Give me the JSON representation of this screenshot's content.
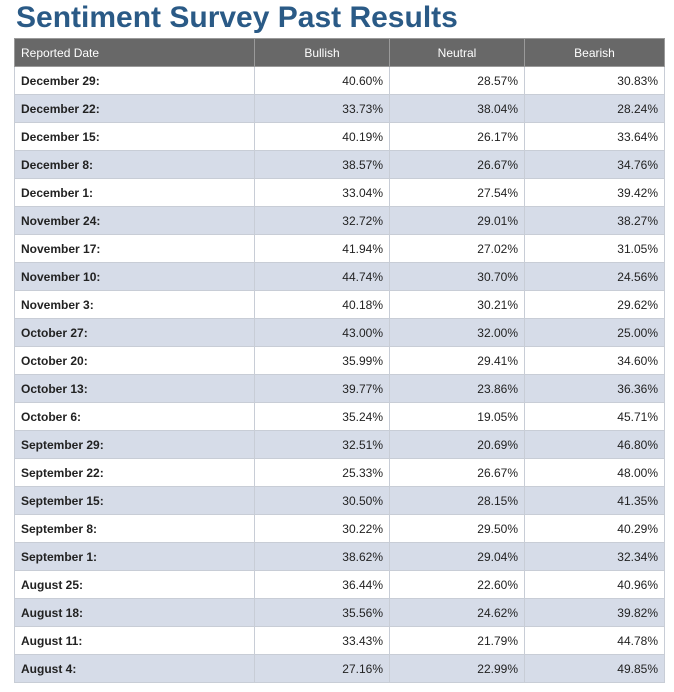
{
  "page": {
    "title": "Sentiment Survey Past Results"
  },
  "chart_data": {
    "type": "table",
    "title": "Sentiment Survey Past Results",
    "columns": [
      "Reported Date",
      "Bullish",
      "Neutral",
      "Bearish"
    ],
    "rows": [
      {
        "date": "December 29:",
        "bullish": "40.60%",
        "neutral": "28.57%",
        "bearish": "30.83%"
      },
      {
        "date": "December 22:",
        "bullish": "33.73%",
        "neutral": "38.04%",
        "bearish": "28.24%"
      },
      {
        "date": "December 15:",
        "bullish": "40.19%",
        "neutral": "26.17%",
        "bearish": "33.64%"
      },
      {
        "date": "December 8:",
        "bullish": "38.57%",
        "neutral": "26.67%",
        "bearish": "34.76%"
      },
      {
        "date": "December 1:",
        "bullish": "33.04%",
        "neutral": "27.54%",
        "bearish": "39.42%"
      },
      {
        "date": "November 24:",
        "bullish": "32.72%",
        "neutral": "29.01%",
        "bearish": "38.27%"
      },
      {
        "date": "November 17:",
        "bullish": "41.94%",
        "neutral": "27.02%",
        "bearish": "31.05%"
      },
      {
        "date": "November 10:",
        "bullish": "44.74%",
        "neutral": "30.70%",
        "bearish": "24.56%"
      },
      {
        "date": "November 3:",
        "bullish": "40.18%",
        "neutral": "30.21%",
        "bearish": "29.62%"
      },
      {
        "date": "October 27:",
        "bullish": "43.00%",
        "neutral": "32.00%",
        "bearish": "25.00%"
      },
      {
        "date": "October 20:",
        "bullish": "35.99%",
        "neutral": "29.41%",
        "bearish": "34.60%"
      },
      {
        "date": "October 13:",
        "bullish": "39.77%",
        "neutral": "23.86%",
        "bearish": "36.36%"
      },
      {
        "date": "October 6:",
        "bullish": "35.24%",
        "neutral": "19.05%",
        "bearish": "45.71%"
      },
      {
        "date": "September 29:",
        "bullish": "32.51%",
        "neutral": "20.69%",
        "bearish": "46.80%"
      },
      {
        "date": "September 22:",
        "bullish": "25.33%",
        "neutral": "26.67%",
        "bearish": "48.00%"
      },
      {
        "date": "September 15:",
        "bullish": "30.50%",
        "neutral": "28.15%",
        "bearish": "41.35%"
      },
      {
        "date": "September 8:",
        "bullish": "30.22%",
        "neutral": "29.50%",
        "bearish": "40.29%"
      },
      {
        "date": "September 1:",
        "bullish": "38.62%",
        "neutral": "29.04%",
        "bearish": "32.34%"
      },
      {
        "date": "August 25:",
        "bullish": "36.44%",
        "neutral": "22.60%",
        "bearish": "40.96%"
      },
      {
        "date": "August 18:",
        "bullish": "35.56%",
        "neutral": "24.62%",
        "bearish": "39.82%"
      },
      {
        "date": "August 11:",
        "bullish": "33.43%",
        "neutral": "21.79%",
        "bearish": "44.78%"
      },
      {
        "date": "August 4:",
        "bullish": "27.16%",
        "neutral": "22.99%",
        "bearish": "49.85%"
      }
    ]
  },
  "colors": {
    "title": "#2a5a86",
    "header_bg": "#686868",
    "header_text": "#ffffff",
    "row_alt_bg": "#d6dce8",
    "row_base_bg": "#ffffff",
    "cell_border": "#c8cdd6"
  }
}
